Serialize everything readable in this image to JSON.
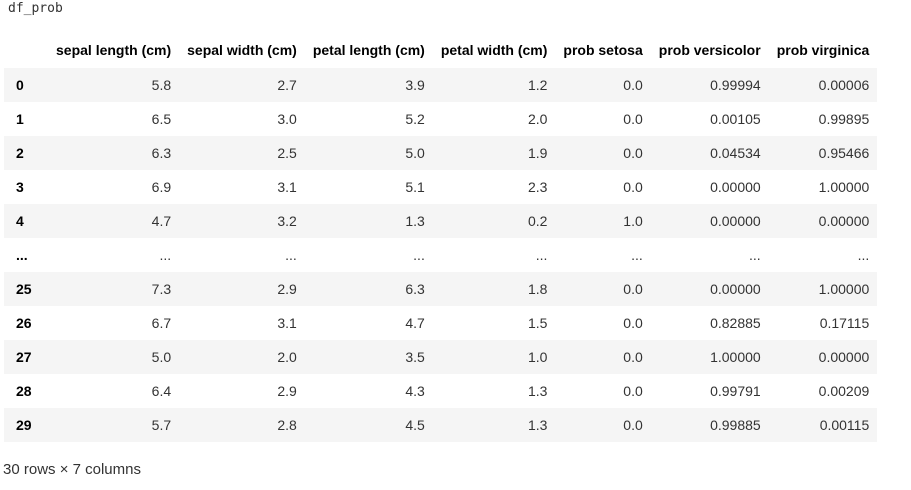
{
  "cell_code": "df_prob",
  "table": {
    "columns": [
      "sepal length (cm)",
      "sepal width (cm)",
      "petal length (cm)",
      "petal width (cm)",
      "prob setosa",
      "prob versicolor",
      "prob virginica"
    ],
    "rows": [
      {
        "index": "0",
        "values": [
          "5.8",
          "2.7",
          "3.9",
          "1.2",
          "0.0",
          "0.99994",
          "0.00006"
        ]
      },
      {
        "index": "1",
        "values": [
          "6.5",
          "3.0",
          "5.2",
          "2.0",
          "0.0",
          "0.00105",
          "0.99895"
        ]
      },
      {
        "index": "2",
        "values": [
          "6.3",
          "2.5",
          "5.0",
          "1.9",
          "0.0",
          "0.04534",
          "0.95466"
        ]
      },
      {
        "index": "3",
        "values": [
          "6.9",
          "3.1",
          "5.1",
          "2.3",
          "0.0",
          "0.00000",
          "1.00000"
        ]
      },
      {
        "index": "4",
        "values": [
          "4.7",
          "3.2",
          "1.3",
          "0.2",
          "1.0",
          "0.00000",
          "0.00000"
        ]
      },
      {
        "index": "...",
        "values": [
          "...",
          "...",
          "...",
          "...",
          "...",
          "...",
          "..."
        ]
      },
      {
        "index": "25",
        "values": [
          "7.3",
          "2.9",
          "6.3",
          "1.8",
          "0.0",
          "0.00000",
          "1.00000"
        ]
      },
      {
        "index": "26",
        "values": [
          "6.7",
          "3.1",
          "4.7",
          "1.5",
          "0.0",
          "0.82885",
          "0.17115"
        ]
      },
      {
        "index": "27",
        "values": [
          "5.0",
          "2.0",
          "3.5",
          "1.0",
          "0.0",
          "1.00000",
          "0.00000"
        ]
      },
      {
        "index": "28",
        "values": [
          "6.4",
          "2.9",
          "4.3",
          "1.3",
          "0.0",
          "0.99791",
          "0.00209"
        ]
      },
      {
        "index": "29",
        "values": [
          "5.7",
          "2.8",
          "4.5",
          "1.3",
          "0.0",
          "0.99885",
          "0.00115"
        ]
      }
    ]
  },
  "footer": "30 rows × 7 columns"
}
